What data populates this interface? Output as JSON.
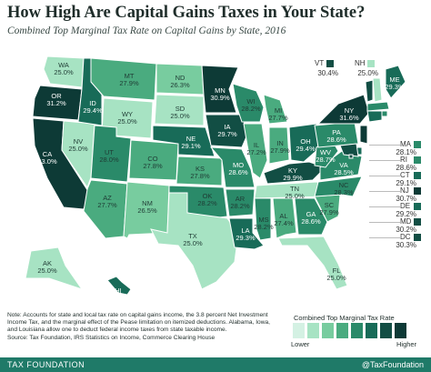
{
  "title": "How High Are Capital Gains Taxes in Your State?",
  "subtitle": "Combined Top Marginal Tax Rate on Capital Gains by State, 2016",
  "colors": {
    "c1": "#d4f1e3",
    "c2": "#a7e3c3",
    "c3": "#78cc9f",
    "c4": "#4aab7f",
    "c5": "#2a8a69",
    "c6": "#186b58",
    "c7": "#124e44",
    "c8": "#0d3a36"
  },
  "states": [
    {
      "abbr": "WA",
      "value": "25.0%"
    },
    {
      "abbr": "OR",
      "value": "31.2%"
    },
    {
      "abbr": "CA",
      "value": "33.0%"
    },
    {
      "abbr": "NV",
      "value": "25.0%"
    },
    {
      "abbr": "ID",
      "value": "29.4%"
    },
    {
      "abbr": "MT",
      "value": "27.9%"
    },
    {
      "abbr": "WY",
      "value": "25.0%"
    },
    {
      "abbr": "UT",
      "value": "28.0%"
    },
    {
      "abbr": "AZ",
      "value": "27.7%"
    },
    {
      "abbr": "CO",
      "value": "27.8%"
    },
    {
      "abbr": "NM",
      "value": "26.5%"
    },
    {
      "abbr": "ND",
      "value": "26.3%"
    },
    {
      "abbr": "SD",
      "value": "25.0%"
    },
    {
      "abbr": "NE",
      "value": "29.1%"
    },
    {
      "abbr": "KS",
      "value": "27.8%"
    },
    {
      "abbr": "OK",
      "value": "28.2%"
    },
    {
      "abbr": "TX",
      "value": "25.0%"
    },
    {
      "abbr": "MN",
      "value": "30.9%"
    },
    {
      "abbr": "IA",
      "value": "29.7%"
    },
    {
      "abbr": "MO",
      "value": "28.6%"
    },
    {
      "abbr": "AR",
      "value": "28.2%"
    },
    {
      "abbr": "LA",
      "value": "29.3%"
    },
    {
      "abbr": "WI",
      "value": "28.2%"
    },
    {
      "abbr": "IL",
      "value": "27.2%"
    },
    {
      "abbr": "MI",
      "value": "27.7%"
    },
    {
      "abbr": "IN",
      "value": "27.9%"
    },
    {
      "abbr": "OH",
      "value": "29.4%"
    },
    {
      "abbr": "KY",
      "value": "29.9%"
    },
    {
      "abbr": "TN",
      "value": "25.0%"
    },
    {
      "abbr": "MS",
      "value": "28.2%"
    },
    {
      "abbr": "AL",
      "value": "27.4%"
    },
    {
      "abbr": "GA",
      "value": "28.6%"
    },
    {
      "abbr": "FL",
      "value": "25.0%"
    },
    {
      "abbr": "SC",
      "value": "27.9%"
    },
    {
      "abbr": "NC",
      "value": "28.3%"
    },
    {
      "abbr": "VA",
      "value": "28.5%"
    },
    {
      "abbr": "WV",
      "value": "28.7%"
    },
    {
      "abbr": "PA",
      "value": "28.6%"
    },
    {
      "abbr": "NY",
      "value": "31.6%"
    },
    {
      "abbr": "ME",
      "value": "29.3%"
    },
    {
      "abbr": "AK",
      "value": "25.0%"
    },
    {
      "abbr": "HI",
      "value": "29.2%"
    }
  ],
  "northeast": [
    {
      "abbr": "VT",
      "value": "30.4%"
    },
    {
      "abbr": "NH",
      "value": "25.0%"
    },
    {
      "abbr": "MA",
      "value": "28.1%"
    },
    {
      "abbr": "RI",
      "value": "28.6%"
    },
    {
      "abbr": "CT",
      "value": "29.1%"
    },
    {
      "abbr": "NJ",
      "value": "30.7%"
    },
    {
      "abbr": "DE",
      "value": "29.2%"
    },
    {
      "abbr": "MD",
      "value": "30.2%"
    },
    {
      "abbr": "DC",
      "value": "30.3%"
    }
  ],
  "note": "Note: Accounts for state and local tax rate on capital gains income, the 3.8 percent Net Investment Income Tax, and the marginal effect of the Pease limitation on itemized deductions. Alabama, Iowa, and Louisiana allow one to deduct federal income taxes from state taxable income.",
  "source": "Source: Tax Foundation, IRS Statistics on Income, Commerce Clearing House",
  "legend": {
    "title": "Combined Top Marginal Tax Rate",
    "low": "Lower",
    "high": "Higher"
  },
  "footer": {
    "left": "TAX FOUNDATION",
    "right": "@TaxFoundation"
  }
}
